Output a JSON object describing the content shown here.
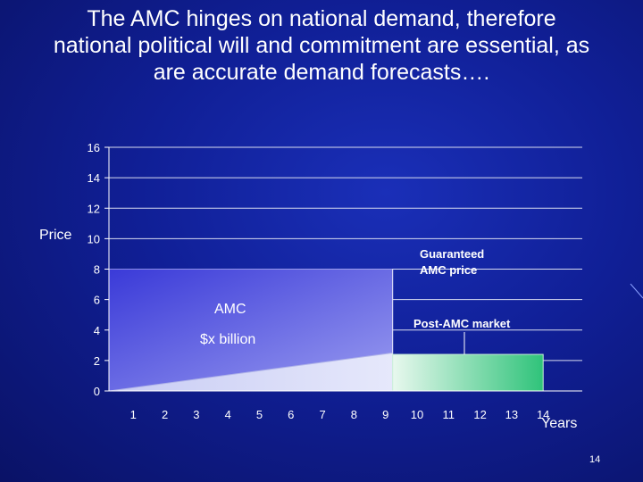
{
  "slide": {
    "title_lines": [
      "The AMC hinges on national demand, therefore",
      "national political will and commitment are essential, as",
      "are accurate demand forecasts…."
    ],
    "slide_number": "14"
  },
  "chart_data": {
    "type": "area",
    "title": "",
    "xlabel": "Years",
    "ylabel": "Price",
    "x_categories": [
      "1",
      "2",
      "3",
      "4",
      "5",
      "6",
      "7",
      "8",
      "9",
      "10",
      "11",
      "12",
      "13",
      "14"
    ],
    "y_ticks": [
      0,
      2,
      4,
      6,
      8,
      10,
      12,
      14,
      16
    ],
    "ylim": [
      0,
      16
    ],
    "grid": true,
    "regions": [
      {
        "name": "AMC",
        "sublabel": "$x billion",
        "x_start": 0.5,
        "x_end": 9,
        "top": 8,
        "color": "#3a3ad8"
      },
      {
        "name": "Post-AMC market",
        "x_start": 9,
        "x_end": 14,
        "top": 2.4,
        "color": "#2fc37a"
      }
    ],
    "series": [
      {
        "name": "Price line",
        "x": [
          0.5,
          9
        ],
        "values": [
          0,
          2.5
        ]
      }
    ],
    "annotations": {
      "guaranteed": [
        "Guaranteed",
        "AMC price"
      ],
      "amc": "AMC",
      "amc_sub": "$x billion",
      "post": "Post-AMC market"
    }
  }
}
